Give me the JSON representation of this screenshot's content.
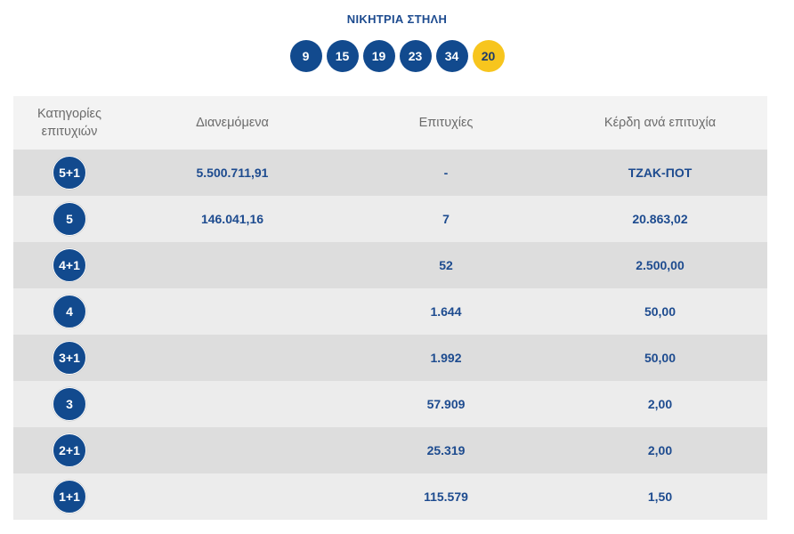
{
  "heading": "ΝΙΚΗΤΡΙΑ ΣΤΗΛΗ",
  "winning_numbers": [
    "9",
    "15",
    "19",
    "23",
    "34"
  ],
  "bonus_number": "20",
  "colors": {
    "primary_blue": "#124a8e",
    "bonus_yellow": "#f7c51e",
    "row_light": "#ececec",
    "row_dark": "#dddddd",
    "header_bg": "#f3f3f3"
  },
  "table": {
    "headers": {
      "category_line1": "Κατηγορίες",
      "category_line2": "επιτυχιών",
      "distributed": "Διανεμόμενα",
      "winners": "Επιτυχίες",
      "prize_per_winner": "Κέρδη ανά επιτυχία"
    },
    "rows": [
      {
        "category": "5+1",
        "distributed": "5.500.711,91",
        "winners": "-",
        "prize": "ΤΖΑΚ-ΠΟΤ"
      },
      {
        "category": "5",
        "distributed": "146.041,16",
        "winners": "7",
        "prize": "20.863,02"
      },
      {
        "category": "4+1",
        "distributed": "",
        "winners": "52",
        "prize": "2.500,00"
      },
      {
        "category": "4",
        "distributed": "",
        "winners": "1.644",
        "prize": "50,00"
      },
      {
        "category": "3+1",
        "distributed": "",
        "winners": "1.992",
        "prize": "50,00"
      },
      {
        "category": "3",
        "distributed": "",
        "winners": "57.909",
        "prize": "2,00"
      },
      {
        "category": "2+1",
        "distributed": "",
        "winners": "25.319",
        "prize": "2,00"
      },
      {
        "category": "1+1",
        "distributed": "",
        "winners": "115.579",
        "prize": "1,50"
      }
    ]
  }
}
